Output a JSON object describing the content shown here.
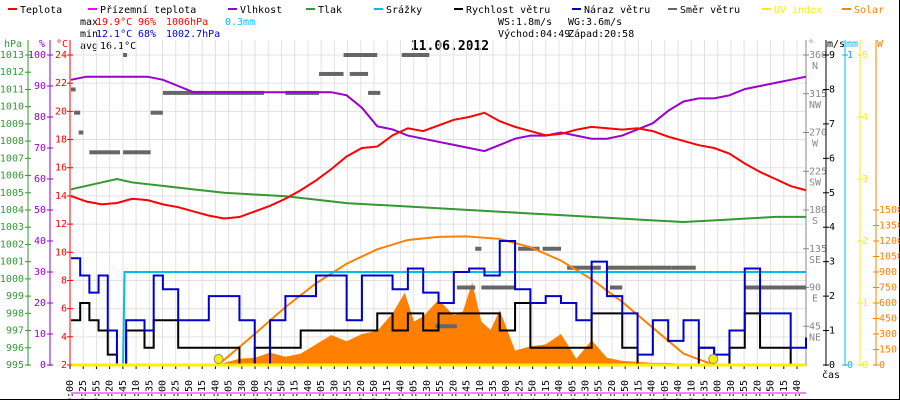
{
  "legend": [
    {
      "label": "Teplota",
      "color": "#ff0000"
    },
    {
      "label": "Přízemní teplota",
      "color": "#ff00ff"
    },
    {
      "label": "Vlhkost",
      "color": "#9900cc"
    },
    {
      "label": "Tlak",
      "color": "#339933"
    },
    {
      "label": "Srážky",
      "color": "#00bbee"
    },
    {
      "label": "Rychlost větru",
      "color": "#000000"
    },
    {
      "label": "Náraz větru",
      "color": "#0000cc"
    },
    {
      "label": "Směr větru",
      "color": "#666666"
    },
    {
      "label": "UV index",
      "color": "#ffee00"
    },
    {
      "label": "Solar",
      "color": "#ff8000"
    }
  ],
  "stats": {
    "max_label": "max",
    "max_temp": "19.9°C",
    "max_hum": "96%",
    "max_press": "1006hPa",
    "rain": "0.3mm",
    "min_label": "min",
    "min_temp": "12.1°C",
    "min_hum": "68%",
    "min_press": "1002.7hPa",
    "avg_label": "avg",
    "avg_temp": "16.1°C",
    "ws": "WS:1.8m/s",
    "wg": "WG:3.6m/s",
    "sunrise": "Východ:04:49",
    "sunset": "Západ:20:58"
  },
  "chart_data": {
    "type": "line",
    "title": "11.06.2012",
    "xlabel": "čas",
    "xlim_hours": [
      0,
      24
    ],
    "grid": true,
    "legend_position": "top",
    "time_labels": [
      "00:00",
      "00:25",
      "00:55",
      "01:20",
      "01:45",
      "02:10",
      "02:35",
      "03:00",
      "03:25",
      "03:50",
      "04:15",
      "04:40",
      "05:05",
      "05:30",
      "06:00",
      "06:25",
      "06:50",
      "07:15",
      "07:40",
      "08:05",
      "08:30",
      "08:55",
      "09:20",
      "09:50",
      "10:15",
      "10:40",
      "11:05",
      "11:30",
      "11:55",
      "12:20",
      "12:45",
      "13:10",
      "13:35",
      "14:00",
      "14:25",
      "14:50",
      "15:15",
      "15:40",
      "16:05",
      "16:30",
      "16:55",
      "17:20",
      "17:50",
      "18:15",
      "18:40",
      "19:05",
      "19:40",
      "20:10",
      "20:35",
      "21:00",
      "21:30",
      "21:55",
      "22:20",
      "22:50",
      "23:15",
      "23:40"
    ],
    "axes": {
      "pressure": {
        "unit": "hPa",
        "range": [
          995,
          1013
        ],
        "ticks": [
          "1013",
          "1012",
          "1011",
          "1010",
          "1009",
          "1008",
          "1007",
          "1006",
          "1005",
          "1004",
          "1003",
          "1002",
          "1001",
          "1000",
          "999",
          "998",
          "997",
          "996",
          "995"
        ]
      },
      "humidity": {
        "unit": "%",
        "range": [
          0,
          100
        ],
        "ticks": [
          "100",
          "90",
          "80",
          "70",
          "60",
          "50",
          "40",
          "30",
          "20",
          "10",
          "0"
        ]
      },
      "temperature": {
        "unit": "°C",
        "range": [
          2,
          24
        ],
        "ticks": [
          "24",
          "22",
          "20",
          "18",
          "16",
          "14",
          "12",
          "10",
          "8",
          "6",
          "4",
          "2"
        ]
      },
      "direction": {
        "unit": "°",
        "range": [
          0,
          360
        ],
        "ticks": [
          [
            "360",
            "N"
          ],
          [
            "315",
            "NW"
          ],
          [
            "270",
            "W"
          ],
          [
            "225",
            "SW"
          ],
          [
            "180",
            "S"
          ],
          [
            "135",
            "SE"
          ],
          [
            "90",
            "E"
          ],
          [
            "45",
            "NE"
          ]
        ]
      },
      "speed": {
        "unit": "m/s",
        "range": [
          0,
          9
        ],
        "ticks": [
          "9",
          "8",
          "7",
          "6",
          "5",
          "4",
          "3",
          "2",
          "1",
          "0"
        ]
      },
      "rain": {
        "unit": "mm",
        "range": [
          0,
          1
        ],
        "ticks": [
          "1",
          "0"
        ]
      },
      "uv": {
        "unit": "UV index",
        "range": [
          0,
          5
        ],
        "ticks": [
          "5",
          "4",
          "3",
          "2",
          "1",
          "0"
        ]
      },
      "solar": {
        "unit": "W",
        "range": [
          0,
          1500
        ],
        "ticks": [
          "1500",
          "1350",
          "1200",
          "1050",
          "900",
          "750",
          "600",
          "450",
          "300",
          "150",
          "0"
        ]
      }
    },
    "series": [
      {
        "name": "Teplota",
        "axis": "temperature",
        "x": [
          0,
          0.5,
          1,
          1.5,
          2,
          2.5,
          3,
          3.5,
          4,
          4.5,
          5,
          5.5,
          6,
          6.5,
          7,
          7.5,
          8,
          8.5,
          9,
          9.5,
          10,
          10.5,
          11,
          11.5,
          12,
          12.5,
          13,
          13.5,
          14,
          14.5,
          15,
          15.5,
          16,
          16.5,
          17,
          17.5,
          18,
          18.5,
          19,
          19.5,
          20,
          20.5,
          21,
          21.5,
          22,
          22.5,
          23,
          23.5,
          24
        ],
        "values": [
          14.0,
          13.6,
          13.4,
          13.5,
          13.8,
          13.7,
          13.4,
          13.2,
          12.9,
          12.6,
          12.4,
          12.5,
          12.9,
          13.3,
          13.8,
          14.4,
          15.1,
          15.9,
          16.8,
          17.4,
          17.5,
          18.3,
          18.8,
          18.6,
          19.0,
          19.4,
          19.6,
          19.9,
          19.3,
          18.9,
          18.6,
          18.3,
          18.4,
          18.7,
          18.9,
          18.8,
          18.7,
          18.8,
          18.6,
          18.2,
          17.9,
          17.6,
          17.4,
          17.0,
          16.3,
          15.7,
          15.2,
          14.7,
          14.4
        ]
      },
      {
        "name": "Vlhkost",
        "axis": "humidity",
        "x": [
          0,
          0.5,
          1,
          1.5,
          2,
          2.5,
          3,
          3.5,
          4,
          4.5,
          5,
          5.5,
          6,
          6.5,
          7,
          7.5,
          8,
          8.5,
          9,
          9.5,
          10,
          10.5,
          11,
          11.5,
          12,
          12.5,
          13,
          13.5,
          14,
          14.5,
          15,
          15.5,
          16,
          16.5,
          17,
          17.5,
          18,
          18.5,
          19,
          19.5,
          20,
          20.5,
          21,
          21.5,
          22,
          22.5,
          23,
          23.5,
          24
        ],
        "values": [
          92,
          93,
          93,
          93,
          93,
          93,
          92,
          90,
          88,
          88,
          88,
          88,
          88,
          88,
          88,
          88,
          88,
          88,
          87,
          83,
          77,
          76,
          74,
          73,
          72,
          71,
          70,
          69,
          71,
          73,
          74,
          74,
          75,
          74,
          73,
          73,
          74,
          76,
          78,
          82,
          85,
          86,
          86,
          87,
          89,
          90,
          91,
          92,
          93
        ]
      },
      {
        "name": "Tlak",
        "axis": "pressure",
        "x": [
          0,
          1,
          1.5,
          2,
          3,
          4,
          5,
          6,
          7,
          8,
          9,
          10,
          11,
          12,
          13,
          14,
          15,
          16,
          17,
          18,
          19,
          20,
          21,
          22,
          23,
          24
        ],
        "values": [
          1005.2,
          1005.6,
          1005.8,
          1005.6,
          1005.4,
          1005.2,
          1005.0,
          1004.9,
          1004.8,
          1004.6,
          1004.4,
          1004.3,
          1004.2,
          1004.1,
          1004.0,
          1003.9,
          1003.8,
          1003.7,
          1003.6,
          1003.5,
          1003.4,
          1003.3,
          1003.4,
          1003.5,
          1003.6,
          1003.6
        ]
      },
      {
        "name": "Srážky",
        "axis": "rain",
        "x": [
          0,
          1.7,
          1.75,
          24
        ],
        "values": [
          0,
          0,
          0.3,
          0.3
        ]
      },
      {
        "name": "Rychlost větru",
        "axis": "speed",
        "x": [
          0,
          0.3,
          0.6,
          0.9,
          1.2,
          1.5,
          1.8,
          2.1,
          2.4,
          2.7,
          3.0,
          3.5,
          4.0,
          4.5,
          5.0,
          5.5,
          6.0,
          6.5,
          7.0,
          7.5,
          8.0,
          8.5,
          9.0,
          9.5,
          10.0,
          10.5,
          11.0,
          11.5,
          12.0,
          12.5,
          13.0,
          13.5,
          14.0,
          14.5,
          15.0,
          15.5,
          16.0,
          16.5,
          17.0,
          17.5,
          18.0,
          18.5,
          19.0,
          19.5,
          20.0,
          20.5,
          21.0,
          21.5,
          22.0,
          22.5,
          23.0,
          23.5,
          24.0
        ],
        "values": [
          1.3,
          1.8,
          1.3,
          1.0,
          0.3,
          0,
          1.0,
          1.0,
          0.5,
          1.3,
          1.3,
          0.5,
          0.5,
          0.5,
          0.5,
          0,
          0.5,
          0.5,
          0.5,
          1.0,
          1.0,
          1.0,
          1.0,
          1.0,
          1.5,
          1.0,
          1.5,
          1.0,
          1.5,
          1.5,
          1.5,
          1.5,
          1.0,
          1.8,
          0.5,
          0.5,
          0.5,
          0.5,
          1.5,
          1.5,
          0.5,
          0,
          0,
          0,
          0,
          0.5,
          0,
          0.5,
          1.5,
          0.5,
          0.5,
          0,
          0
        ]
      },
      {
        "name": "Náraz větru",
        "axis": "speed",
        "x": [
          0,
          0.3,
          0.6,
          0.9,
          1.2,
          1.5,
          1.8,
          2.1,
          2.4,
          2.7,
          3.0,
          3.5,
          4.0,
          4.5,
          5.0,
          5.5,
          6.0,
          6.5,
          7.0,
          7.5,
          8.0,
          8.5,
          9.0,
          9.5,
          10.0,
          10.5,
          11.0,
          11.5,
          12.0,
          12.5,
          13.0,
          13.5,
          14.0,
          14.5,
          15.0,
          15.5,
          16.0,
          16.5,
          17.0,
          17.5,
          18.0,
          18.5,
          19.0,
          19.5,
          20.0,
          20.5,
          21.0,
          21.5,
          22.0,
          22.5,
          23.0,
          23.5,
          24.0
        ],
        "values": [
          3.1,
          2.6,
          2.1,
          2.6,
          1.0,
          0,
          1.3,
          1.3,
          1.0,
          2.6,
          2.2,
          1.3,
          1.3,
          2.0,
          2.0,
          1.3,
          0,
          1.3,
          2.0,
          2.0,
          2.6,
          2.6,
          1.3,
          2.6,
          2.6,
          2.2,
          2.8,
          2.1,
          1.8,
          2.7,
          2.8,
          2.6,
          3.6,
          2.2,
          1.8,
          2.0,
          1.8,
          1.3,
          3.0,
          2.0,
          1.5,
          0.3,
          1.3,
          0.7,
          1.3,
          0.5,
          0.3,
          1.0,
          2.8,
          1.5,
          1.5,
          0.5,
          0.8
        ]
      },
      {
        "name": "Solar",
        "axis": "solar",
        "x": [
          4.8,
          5.0,
          5.5,
          6.0,
          6.5,
          7.0,
          7.5,
          8.0,
          8.5,
          9.0,
          9.5,
          10.0,
          10.5,
          10.9,
          11.2,
          11.5,
          12.0,
          12.5,
          12.8,
          13.1,
          13.4,
          13.7,
          14.0,
          14.5,
          15.0,
          15.5,
          16.0,
          16.5,
          17.0,
          17.5,
          18.0,
          18.5,
          19.0,
          19.5,
          20.0,
          20.5,
          21.0
        ],
        "values": [
          0,
          20,
          60,
          70,
          120,
          80,
          110,
          200,
          290,
          230,
          300,
          330,
          500,
          700,
          420,
          470,
          630,
          480,
          520,
          800,
          420,
          340,
          530,
          140,
          180,
          200,
          300,
          60,
          240,
          70,
          40,
          30,
          20,
          20,
          10,
          5,
          0
        ]
      },
      {
        "name": "Solar max",
        "axis": "solar",
        "x": [
          4.8,
          6,
          7,
          8,
          9,
          10,
          11,
          12,
          12.9,
          14,
          15,
          16,
          17,
          18,
          19,
          20,
          21
        ],
        "values": [
          0,
          300,
          560,
          790,
          980,
          1120,
          1210,
          1240,
          1245,
          1220,
          1140,
          1010,
          830,
          610,
          360,
          110,
          0
        ]
      },
      {
        "name": "UV index",
        "axis": "uv",
        "x": [
          0,
          24
        ],
        "values": [
          0,
          0
        ]
      }
    ],
    "direction_segments": [
      [
        0.0,
        0.15,
        320
      ],
      [
        0.1,
        0.3,
        293
      ],
      [
        0.25,
        0.4,
        270
      ],
      [
        0.6,
        1.6,
        247
      ],
      [
        1.7,
        2.6,
        247
      ],
      [
        1.7,
        1.8,
        360
      ],
      [
        2.6,
        3.0,
        293
      ],
      [
        3.0,
        6.3,
        316
      ],
      [
        7.0,
        8.1,
        316
      ],
      [
        8.1,
        8.9,
        338
      ],
      [
        8.9,
        10.0,
        360
      ],
      [
        9.1,
        9.7,
        338
      ],
      [
        9.7,
        10.1,
        316
      ],
      [
        10.8,
        11.7,
        360
      ],
      [
        11.9,
        12.6,
        45
      ],
      [
        12.6,
        13.2,
        90
      ],
      [
        13.2,
        13.4,
        135
      ],
      [
        13.4,
        14.5,
        90
      ],
      [
        14.6,
        15.3,
        135
      ],
      [
        15.4,
        16.0,
        135
      ],
      [
        16.2,
        17.3,
        113
      ],
      [
        17.5,
        19.6,
        113
      ],
      [
        17.6,
        18.0,
        90
      ],
      [
        19.6,
        20.4,
        113
      ],
      [
        22.0,
        24.0,
        90
      ]
    ],
    "sun_markers": [
      {
        "label": "Východ",
        "time_h": 4.82
      },
      {
        "label": "Západ",
        "time_h": 20.97
      }
    ]
  }
}
